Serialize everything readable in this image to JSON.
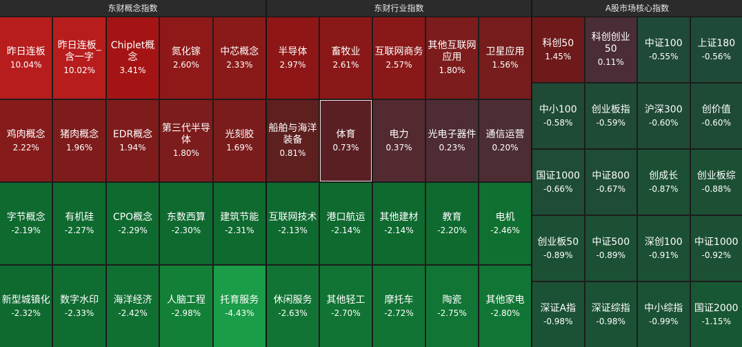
{
  "panels": [
    {
      "title": "东财概念指数",
      "tiles": [
        {
          "name": "昨日连板",
          "pct": "10.04%",
          "color": "#b81d1d"
        },
        {
          "name": "昨日连板_含一字",
          "pct": "10.02%",
          "color": "#b81d1d"
        },
        {
          "name": "Chiplet概念",
          "pct": "3.41%",
          "color": "#a51414"
        },
        {
          "name": "氮化镓",
          "pct": "2.60%",
          "color": "#8f1818"
        },
        {
          "name": "中芯概念",
          "pct": "2.33%",
          "color": "#8a1919"
        },
        {
          "name": "鸡肉概念",
          "pct": "2.22%",
          "color": "#861b1b"
        },
        {
          "name": "猪肉概念",
          "pct": "1.96%",
          "color": "#7e1b1b"
        },
        {
          "name": "EDR概念",
          "pct": "1.94%",
          "color": "#7e1b1b"
        },
        {
          "name": "第三代半导体",
          "pct": "1.80%",
          "color": "#7c1c1c"
        },
        {
          "name": "光刻胶",
          "pct": "1.69%",
          "color": "#7a1c1c"
        },
        {
          "name": "字节概念",
          "pct": "-2.19%",
          "color": "#0f6a30"
        },
        {
          "name": "有机硅",
          "pct": "-2.27%",
          "color": "#0f6a30"
        },
        {
          "name": "CPO概念",
          "pct": "-2.29%",
          "color": "#0f6a30"
        },
        {
          "name": "东数西算",
          "pct": "-2.30%",
          "color": "#0f6a30"
        },
        {
          "name": "建筑节能",
          "pct": "-2.31%",
          "color": "#0f6a30"
        },
        {
          "name": "新型城镇化",
          "pct": "-2.32%",
          "color": "#0f6a30"
        },
        {
          "name": "数字水印",
          "pct": "-2.33%",
          "color": "#106d31"
        },
        {
          "name": "海洋经济",
          "pct": "-2.42%",
          "color": "#107032"
        },
        {
          "name": "人脑工程",
          "pct": "-2.98%",
          "color": "#138038"
        },
        {
          "name": "托育服务",
          "pct": "-4.43%",
          "color": "#1a9c48"
        }
      ]
    },
    {
      "title": "东财行业指数",
      "tiles": [
        {
          "name": "半导体",
          "pct": "2.97%",
          "color": "#8e1616"
        },
        {
          "name": "畜牧业",
          "pct": "2.61%",
          "color": "#8b1818"
        },
        {
          "name": "互联网商务",
          "pct": "2.57%",
          "color": "#8b1818"
        },
        {
          "name": "其他互联网应用",
          "pct": "1.80%",
          "color": "#7c1c1c"
        },
        {
          "name": "卫星应用",
          "pct": "1.56%",
          "color": "#761c1c"
        },
        {
          "name": "船舶与海洋装备",
          "pct": "0.81%",
          "color": "#5e1f1f"
        },
        {
          "name": "体育",
          "pct": "0.73%",
          "color": "#5a1f22",
          "selected": true
        },
        {
          "name": "电力",
          "pct": "0.37%",
          "color": "#522a30"
        },
        {
          "name": "光电子器件",
          "pct": "0.23%",
          "color": "#4e2c33"
        },
        {
          "name": "通信运营",
          "pct": "0.20%",
          "color": "#4c2d34"
        },
        {
          "name": "互联网技术",
          "pct": "-2.13%",
          "color": "#0f6a30"
        },
        {
          "name": "港口航运",
          "pct": "-2.14%",
          "color": "#0f6a30"
        },
        {
          "name": "其他建材",
          "pct": "-2.14%",
          "color": "#0f6a30"
        },
        {
          "name": "教育",
          "pct": "-2.20%",
          "color": "#0f6a30"
        },
        {
          "name": "电机",
          "pct": "-2.46%",
          "color": "#107032"
        },
        {
          "name": "休闲服务",
          "pct": "-2.63%",
          "color": "#117434"
        },
        {
          "name": "其他轻工",
          "pct": "-2.70%",
          "color": "#117434"
        },
        {
          "name": "摩托车",
          "pct": "-2.72%",
          "color": "#117434"
        },
        {
          "name": "陶瓷",
          "pct": "-2.75%",
          "color": "#117535"
        },
        {
          "name": "其他家电",
          "pct": "-2.80%",
          "color": "#117635"
        }
      ]
    },
    {
      "title": "A股市场核心指数",
      "tiles": [
        {
          "name": "科创50",
          "pct": "1.45%",
          "color": "#6e1a1a"
        },
        {
          "name": "科创创业50",
          "pct": "0.11%",
          "color": "#4a2d36"
        },
        {
          "name": "中证100",
          "pct": "-0.55%",
          "color": "#1f4a37"
        },
        {
          "name": "上证180",
          "pct": "-0.56%",
          "color": "#1f4a37"
        },
        {
          "name": "中小100",
          "pct": "-0.58%",
          "color": "#1f4a36"
        },
        {
          "name": "创业板指",
          "pct": "-0.59%",
          "color": "#1f4b36"
        },
        {
          "name": "沪深300",
          "pct": "-0.60%",
          "color": "#1f4b36"
        },
        {
          "name": "创价值",
          "pct": "-0.60%",
          "color": "#1f4b36"
        },
        {
          "name": "国证1000",
          "pct": "-0.66%",
          "color": "#1e4c36"
        },
        {
          "name": "中证800",
          "pct": "-0.67%",
          "color": "#1e4c36"
        },
        {
          "name": "创成长",
          "pct": "-0.87%",
          "color": "#1c5035"
        },
        {
          "name": "创业板综",
          "pct": "-0.88%",
          "color": "#1c5035"
        },
        {
          "name": "创业板50",
          "pct": "-0.89%",
          "color": "#1c5035"
        },
        {
          "name": "中证500",
          "pct": "-0.89%",
          "color": "#1c5035"
        },
        {
          "name": "深创100",
          "pct": "-0.91%",
          "color": "#1c5035"
        },
        {
          "name": "中证1000",
          "pct": "-0.92%",
          "color": "#1c5035"
        },
        {
          "name": "深证A指",
          "pct": "-0.98%",
          "color": "#1b5235"
        },
        {
          "name": "深证综指",
          "pct": "-0.98%",
          "color": "#1b5235"
        },
        {
          "name": "中小综指",
          "pct": "-0.99%",
          "color": "#1b5235"
        },
        {
          "name": "国证2000",
          "pct": "-1.15%",
          "color": "#185733"
        }
      ]
    }
  ]
}
